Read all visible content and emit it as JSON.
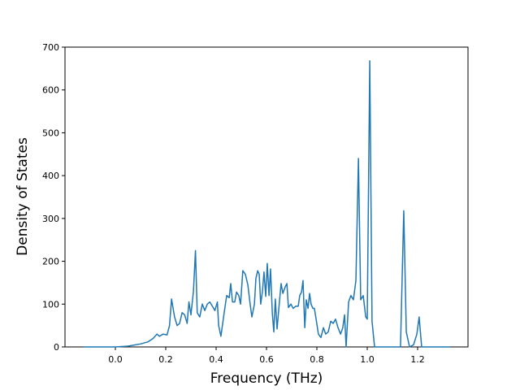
{
  "chart_data": {
    "type": "line",
    "xlabel": "Frequency (THz)",
    "ylabel": "Density of States",
    "xlim": [
      -0.2,
      1.4
    ],
    "ylim": [
      0,
      700
    ],
    "xticks": [
      0.0,
      0.2,
      0.4,
      0.6,
      0.8,
      1.0,
      1.2
    ],
    "yticks": [
      0,
      100,
      200,
      300,
      400,
      500,
      600,
      700
    ],
    "grid": false,
    "series": [
      {
        "color": "#1f77b4",
        "x": [
          -0.126,
          0.0,
          0.05,
          0.1,
          0.13,
          0.15,
          0.165,
          0.175,
          0.19,
          0.205,
          0.215,
          0.223,
          0.235,
          0.245,
          0.255,
          0.265,
          0.275,
          0.285,
          0.292,
          0.3,
          0.31,
          0.318,
          0.325,
          0.335,
          0.345,
          0.355,
          0.365,
          0.375,
          0.385,
          0.395,
          0.405,
          0.41,
          0.419,
          0.432,
          0.442,
          0.452,
          0.458,
          0.465,
          0.474,
          0.481,
          0.49,
          0.497,
          0.506,
          0.516,
          0.526,
          0.535,
          0.542,
          0.552,
          0.558,
          0.565,
          0.571,
          0.577,
          0.584,
          0.59,
          0.597,
          0.603,
          0.61,
          0.616,
          0.623,
          0.629,
          0.635,
          0.642,
          0.652,
          0.658,
          0.665,
          0.674,
          0.681,
          0.687,
          0.697,
          0.706,
          0.716,
          0.726,
          0.732,
          0.739,
          0.745,
          0.752,
          0.758,
          0.765,
          0.771,
          0.777,
          0.784,
          0.79,
          0.797,
          0.806,
          0.816,
          0.826,
          0.835,
          0.845,
          0.855,
          0.865,
          0.874,
          0.884,
          0.894,
          0.903,
          0.91,
          0.916,
          0.926,
          0.935,
          0.945,
          0.955,
          0.965,
          0.974,
          0.984,
          0.994,
          1.0,
          1.01,
          1.019,
          1.029,
          1.132,
          1.145,
          1.155,
          1.168,
          1.184,
          1.197,
          1.206,
          1.216,
          1.329
        ],
        "values": [
          0,
          0,
          2,
          7,
          12,
          20,
          30,
          25,
          30,
          28,
          50,
          112,
          70,
          50,
          55,
          80,
          75,
          55,
          105,
          75,
          130,
          225,
          80,
          70,
          100,
          85,
          100,
          105,
          95,
          85,
          105,
          50,
          25,
          80,
          120,
          115,
          148,
          105,
          105,
          128,
          120,
          100,
          178,
          170,
          145,
          100,
          70,
          100,
          160,
          178,
          170,
          100,
          130,
          175,
          118,
          195,
          120,
          182,
          80,
          35,
          112,
          42,
          110,
          148,
          125,
          140,
          148,
          92,
          100,
          90,
          95,
          95,
          120,
          128,
          155,
          45,
          110,
          90,
          125,
          100,
          90,
          90,
          65,
          30,
          22,
          45,
          30,
          35,
          60,
          55,
          65,
          45,
          30,
          45,
          75,
          0,
          105,
          120,
          110,
          155,
          440,
          110,
          120,
          70,
          65,
          668,
          60,
          0,
          0,
          318,
          35,
          0,
          5,
          30,
          70,
          0,
          0
        ]
      }
    ]
  }
}
